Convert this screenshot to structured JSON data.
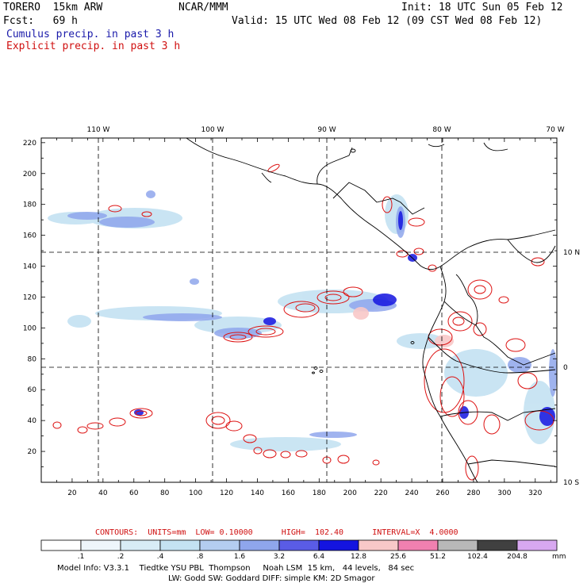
{
  "header": {
    "model": "TORERO  15km ARW",
    "center": "NCAR/MMM",
    "init": "Init: 18 UTC Sun 05 Feb 12",
    "fcst": "Fcst:   69 h",
    "valid": "Valid: 15 UTC Wed 08 Feb 12 (09 CST Wed 08 Feb 12)",
    "cumulus": "Cumulus precip. in past 3 h",
    "explicit": "Explicit precip. in past 3 h"
  },
  "axes": {
    "top_labels": [
      "110 W",
      "100 W",
      "90 W",
      "80 W",
      "70 W"
    ],
    "right_labels": [
      "10 N",
      "0",
      "10 S"
    ],
    "y_labels": [
      "220",
      "200",
      "180",
      "160",
      "140",
      "120",
      "100",
      "80",
      "60",
      "40",
      "20"
    ],
    "x_labels": [
      "20",
      "40",
      "60",
      "80",
      "100",
      "120",
      "140",
      "160",
      "180",
      "200",
      "220",
      "240",
      "260",
      "280",
      "300",
      "320"
    ]
  },
  "contours": {
    "text": "CONTOURS:  UNITS=mm  LOW= 0.10000      HIGH=  102.40      INTERVAL=X  4.0000"
  },
  "colorbar": {
    "labels": [
      ".1",
      ".2",
      ".4",
      ".8",
      "1.6",
      "3.2",
      "6.4",
      "12.8",
      "25.6",
      "51.2",
      "102.4",
      "204.8"
    ],
    "units": "mm",
    "colors": [
      "#ffffff",
      "#eef6fb",
      "#d8ecf6",
      "#c4e2f2",
      "#b4cdf0",
      "#8fa6ec",
      "#5a5ce6",
      "#1414e0",
      "#f8c8c8",
      "#f080b0",
      "#b8b8b8",
      "#404040",
      "#d8a8f0"
    ]
  },
  "footer": {
    "line1": "Model Info: V3.3.1    Tiedtke YSU PBL  Thompson     Noah LSM  15 km,   44 levels,   84 sec",
    "line2": "LW: Godd SW: Goddard DIFF: simple KM: 2D Smagor"
  }
}
